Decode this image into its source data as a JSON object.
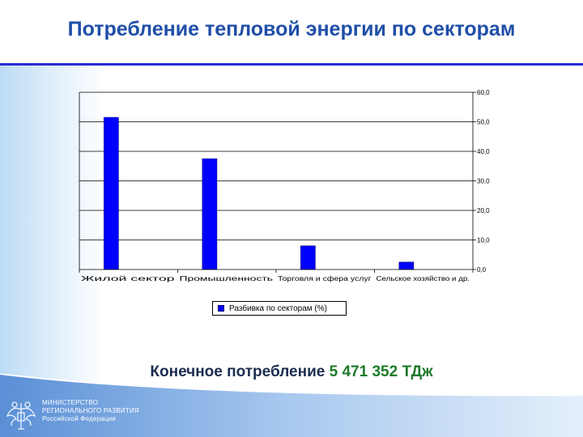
{
  "title": "Потребление тепловой энергии по секторам",
  "colors": {
    "title": "#1f4fa8",
    "rule": "#2b2bd0",
    "bar": "#0000ff",
    "value": "#1e7a2a"
  },
  "chart_data": {
    "type": "bar",
    "categories": [
      "Жилой сектор",
      "Промышленность",
      "Торговля и сфера услуг",
      "Сельское хозяйство и др."
    ],
    "series": [
      {
        "name": "Разбивка по секторам (%)",
        "values": [
          51.5,
          37.5,
          8.0,
          2.5
        ]
      }
    ],
    "ylim": [
      0,
      60
    ],
    "yticks": [
      "0,0",
      "10,0",
      "20,0",
      "30,0",
      "40,0",
      "50,0",
      "60,0"
    ],
    "y_axis_side": "right",
    "grid": true,
    "legend_position": "bottom"
  },
  "footer": {
    "label": "Конечное потребление",
    "value": "5 471 352 ТДж"
  },
  "ministry": {
    "line1": "МИНИСТЕРСТВО",
    "line2": "РЕГИОНАЛЬНОГО РАЗВИТИЯ",
    "line3": "Российской Федерации"
  },
  "icons": {
    "emblem": "double-headed-eagle-icon"
  }
}
